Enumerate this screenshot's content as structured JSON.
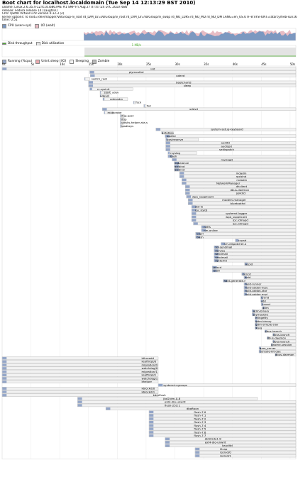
{
  "title": "Boot chart for localhost.localdomain (Tue Sep 14 12:13:29 BST 2010)",
  "info": [
    "uname: Linux 2.6.35.4-12.fc14.i686.PAE #1 SMP Fri Aug 27 07:47:24 UTC 2010 i686",
    "release: Fedora release 14 (Laughlin)",
    "CPU: QEMU Virtual CPU version 0.12.3 (2)",
    "kernel options: ro root=/dev/mapper/VolGroup-lv_root rd_LVM_LV=VolGroup/lv_root rd_LVM_LV=VolGroup/lv_swap rd_NO_LUKS rd_NO_MD rd_NO_DM LANG=en_US.UTF-8 SYSFONT=latarcyrheb-sun16 KEYTABLE=us rhgb quiet initcall_debug",
    "time: 0:51"
  ],
  "legends": {
    "cpu_user": "CPU (user+sys)",
    "io_wait": "I/O (wait)",
    "disk_throughput": "Disk throughput",
    "disk_util": "Disk utilization",
    "running": "Running (%cpu)",
    "unint_sleep": "Unint.sleep (I/O)",
    "sleeping": "Sleeping",
    "zombie": "Zombie"
  },
  "disk_peak": "1 MB/s",
  "colors": {
    "cpu": "#7c98c0",
    "io": "#e8bcc4",
    "throughput": "#4caf2e",
    "util": "#e3e3e3",
    "running": "#94a6c8",
    "unint": "#e9aaae",
    "sleeping": "#f2f2f2",
    "zombie": "#b7b7b7",
    "bar_border": "#a9a9a9"
  },
  "chart_data": {
    "type": "gantt",
    "time_unit": "s",
    "time_ticks": [
      "0s",
      "5s",
      "10s",
      "15s",
      "20s",
      "25s",
      "30s",
      "35s",
      "40s",
      "45s",
      "50s"
    ],
    "processes": [
      {
        "name": "init",
        "start": 0,
        "end": 51,
        "label_at": 25.8
      },
      {
        "name": "plymouthd",
        "start": 15.2,
        "end": 51,
        "label_at": 22.0
      },
      {
        "name": "udevd",
        "start": 15.3,
        "end": 51,
        "label_at": 30.2
      },
      {
        "name": "switch_root",
        "start": 14.3,
        "end": 15.2,
        "label_at": 15.5
      },
      {
        "name": "bootchartd",
        "start": 15.0,
        "end": 51,
        "label_at": 30.2
      },
      {
        "name": "sleep",
        "start": 15.0,
        "end": 51,
        "label_at": 31.5
      },
      {
        "name": "rc.sysinit",
        "start": 15.2,
        "end": 22.7,
        "label_at": 16.5
      },
      {
        "name": "start_udev",
        "start": 17.0,
        "end": 18.8,
        "label_at": 17.7
      },
      {
        "name": "udevd",
        "start": 17.0,
        "end": 18.6,
        "label_at": 17.0
      },
      {
        "name": "udevadm",
        "start": 17.5,
        "end": 21.8,
        "label_at": 18.7
      },
      {
        "name": "fsck",
        "start": 22.8,
        "end": 23.2,
        "label_at": 23.2
      },
      {
        "name": "fsd",
        "start": 24.6,
        "end": 25.0,
        "label_at": 25.1
      },
      {
        "name": "udevd",
        "start": 17.4,
        "end": 51,
        "label_at": 32.5
      },
      {
        "name": "modprobe",
        "start": 17.7,
        "end": 19.2,
        "label_at": 18.3
      },
      {
        "name": "ifup-post",
        "start": 20.5,
        "end": 21.2,
        "label_at": 20.7
      },
      {
        "name": "ifup",
        "start": 20.5,
        "end": 21.2,
        "label_at": 20.7
      },
      {
        "name": "udisks-helper-ata-s",
        "start": 20.5,
        "end": 21.1,
        "label_at": 20.7
      },
      {
        "name": "loadkeys",
        "start": 20.5,
        "end": 21.0,
        "label_at": 20.7
      },
      {
        "name": "system-setup-keyboard",
        "start": 26.7,
        "end": 51,
        "label_at": 36.2
      },
      {
        "name": "getablea",
        "start": 27.7,
        "end": 29.7,
        "label_at": 27.7
      },
      {
        "name": "auditd",
        "start": 28.3,
        "end": 51,
        "label_at": 28.6
      },
      {
        "name": "postreserve",
        "start": 28.4,
        "end": 34.1,
        "label_at": 28.6
      },
      {
        "name": "auditd",
        "start": 28.4,
        "end": 51,
        "label_at": 38.0
      },
      {
        "name": "audispd",
        "start": 28.4,
        "end": 51,
        "label_at": 38.0
      },
      {
        "name": "sedispatch",
        "start": 28.4,
        "end": 51,
        "label_at": 37.7
      },
      {
        "name": "rsyslog",
        "start": 28.8,
        "end": 33.8,
        "label_at": 29.2
      },
      {
        "name": "bash",
        "start": 28.8,
        "end": 51,
        "label_at": 29.2
      },
      {
        "name": "rsyslogd",
        "start": 29.5,
        "end": 51,
        "label_at": 38.0
      },
      {
        "name": "irqbalance",
        "start": 29.9,
        "end": 51,
        "label_at": 29.9
      },
      {
        "name": "rpcbind",
        "start": 29.9,
        "end": 51,
        "label_at": 29.9
      },
      {
        "name": "rpcbind",
        "start": 29.9,
        "end": 51,
        "label_at": 29.9
      },
      {
        "name": "mdadm",
        "start": 30.8,
        "end": 51,
        "label_at": 40.6
      },
      {
        "name": "rpcbind",
        "start": 30.8,
        "end": 51,
        "label_at": 40.6
      },
      {
        "name": "mdadm",
        "start": 31.2,
        "end": 51,
        "label_at": 40.7
      },
      {
        "name": "NetworkManager",
        "start": 31.2,
        "end": 51,
        "label_at": 37.2
      },
      {
        "name": "dhclient",
        "start": 31.8,
        "end": 51,
        "label_at": 40.6
      },
      {
        "name": "dbus-daemon",
        "start": 31.8,
        "end": 51,
        "label_at": 39.6
      },
      {
        "name": "polkitd",
        "start": 31.8,
        "end": 51,
        "label_at": 40.6
      },
      {
        "name": "wpa_supplicant",
        "start": 32.0,
        "end": 51,
        "label_at": 33.0
      },
      {
        "name": "modem-manager",
        "start": 32.3,
        "end": 51,
        "label_at": 38.2
      },
      {
        "name": "bluetoothd",
        "start": 32.3,
        "end": 51,
        "label_at": 39.6
      },
      {
        "name": "atd-lo",
        "start": 32.9,
        "end": 51,
        "label_at": 33.5
      },
      {
        "name": "rpc.statd",
        "start": 32.9,
        "end": 51,
        "label_at": 33.5
      },
      {
        "name": "systemd-logger",
        "start": 32.9,
        "end": 51,
        "label_at": 38.8
      },
      {
        "name": "wpa_supplicant",
        "start": 32.9,
        "end": 51,
        "label_at": 38.8
      },
      {
        "name": "rpc.idmapd",
        "start": 32.9,
        "end": 51,
        "label_at": 40.0
      },
      {
        "name": "rpc.idmapd",
        "start": 33.2,
        "end": 51,
        "label_at": 40.0
      },
      {
        "name": "netfs",
        "start": 34.6,
        "end": 51,
        "label_at": 35.0
      },
      {
        "name": "nm-online",
        "start": 34.6,
        "end": 51,
        "label_at": 35.0
      },
      {
        "name": "capri",
        "start": 33.6,
        "end": 51,
        "label_at": 33.8
      },
      {
        "name": "bash",
        "start": 33.6,
        "end": 51,
        "label_at": 33.8
      },
      {
        "name": "cupsd",
        "start": 40.5,
        "end": 51,
        "label_at": 41.0
      },
      {
        "name": "nm-dispatcher.a",
        "start": 38.0,
        "end": 51,
        "label_at": 38.5
      },
      {
        "name": "S3-sendmail",
        "start": 36.8,
        "end": 51,
        "label_at": 37.0
      },
      {
        "name": "service",
        "start": 36.8,
        "end": 51,
        "label_at": 37.0
      },
      {
        "name": "sendmail",
        "start": 36.8,
        "end": 51,
        "label_at": 37.0
      },
      {
        "name": "sendmail",
        "start": 36.8,
        "end": 51,
        "label_at": 37.0
      },
      {
        "name": "systemd",
        "start": 36.8,
        "end": 51,
        "label_at": 37.0
      },
      {
        "name": "acpid",
        "start": 42.1,
        "end": 51,
        "label_at": 42.2
      },
      {
        "name": "pcscd",
        "start": 36.5,
        "end": 51,
        "label_at": 36.7
      },
      {
        "name": "bash",
        "start": 36.5,
        "end": 51,
        "label_at": 36.7
      },
      {
        "name": "pcscd",
        "start": 41.6,
        "end": 51,
        "label_at": 41.8
      },
      {
        "name": "hald",
        "start": 42.0,
        "end": 51,
        "label_at": 42.1
      },
      {
        "name": "hald-generate-f",
        "start": 38.4,
        "end": 51,
        "label_at": 38.5
      },
      {
        "name": "hald-runner",
        "start": 42.0,
        "end": 51,
        "label_at": 42.2
      },
      {
        "name": "hald-addon-inpu",
        "start": 42.0,
        "end": 51,
        "label_at": 42.2
      },
      {
        "name": "hald-addon-stor",
        "start": 42.0,
        "end": 51,
        "label_at": 42.2
      },
      {
        "name": "hald-addon-acpi",
        "start": 42.0,
        "end": 51,
        "label_at": 42.2
      },
      {
        "name": "crond",
        "start": 44.9,
        "end": 51,
        "label_at": 45.0
      },
      {
        "name": "atd",
        "start": 44.9,
        "end": 51,
        "label_at": 45.0
      },
      {
        "name": "crond",
        "start": 45.0,
        "end": 51,
        "label_at": 45.2
      },
      {
        "name": "gdm",
        "start": 45.2,
        "end": 51,
        "label_at": 45.2
      },
      {
        "name": "gdm-binary",
        "start": 43.4,
        "end": 51,
        "label_at": 43.6
      },
      {
        "name": "plymouthd",
        "start": 43.4,
        "end": 51,
        "label_at": 43.6
      },
      {
        "name": "mingetty",
        "start": 43.9,
        "end": 51,
        "label_at": 44.0
      },
      {
        "name": "gdm-binary",
        "start": 43.9,
        "end": 51,
        "label_at": 44.0
      },
      {
        "name": "gdm-simple-slav",
        "start": 43.9,
        "end": 51,
        "label_at": 44.0
      },
      {
        "name": "Xorg",
        "start": 43.9,
        "end": 51,
        "label_at": 44.0
      },
      {
        "name": "dbus-launch",
        "start": 45.6,
        "end": 51,
        "label_at": 45.6
      },
      {
        "name": "dbus-launch",
        "start": 47.0,
        "end": 51,
        "label_at": 47.0
      },
      {
        "name": "dbus-daemon",
        "start": 46.0,
        "end": 51,
        "label_at": 46.0
      },
      {
        "name": "dbus-launch",
        "start": 47.0,
        "end": 51,
        "label_at": 47.0
      },
      {
        "name": "gnome-session",
        "start": 46.7,
        "end": 51,
        "label_at": 46.7
      },
      {
        "name": "gam_server",
        "start": 44.6,
        "end": 51,
        "label_at": 44.7
      },
      {
        "name": "console-kit-dae",
        "start": 44.6,
        "end": 51,
        "label_at": 44.7
      },
      {
        "name": "dbus-daemon",
        "start": 47.4,
        "end": 51,
        "label_at": 47.4
      },
      {
        "name": "kthreadd",
        "start": 0,
        "end": 27.1,
        "label_at": 24.2
      },
      {
        "name": "ksoftirqd/0",
        "start": 0,
        "end": 27.1,
        "label_at": 24.2
      },
      {
        "name": "migration/0",
        "start": 0,
        "end": 27.1,
        "label_at": 24.2
      },
      {
        "name": "watchdog/0",
        "start": 0,
        "end": 27.1,
        "label_at": 24.2
      },
      {
        "name": "migration/1",
        "start": 0,
        "end": 27.1,
        "label_at": 24.2
      },
      {
        "name": "ksoftirqd/1",
        "start": 0,
        "end": 27.1,
        "label_at": 24.2
      },
      {
        "name": "watchdog/1",
        "start": 0,
        "end": 27.1,
        "label_at": 24.2
      },
      {
        "name": "khelper",
        "start": 0,
        "end": 27.1,
        "label_at": 24.2
      },
      {
        "name": "systemd-cgroups",
        "start": 27.1,
        "end": 51,
        "label_at": 28.0
      },
      {
        "name": "kblockd/0",
        "start": 0,
        "end": 27.1,
        "label_at": 24.2
      },
      {
        "name": "kblockd/1",
        "start": 0,
        "end": 27.1,
        "label_at": 24.2
      },
      {
        "name": "kdmflush",
        "start": 0,
        "end": 27.1,
        "label_at": 26.2
      },
      {
        "name": "jbd2/dm-0-8",
        "start": 13.1,
        "end": 44.3,
        "label_at": 28.0
      },
      {
        "name": "ext4-dio-unwrit",
        "start": 13.1,
        "end": 51,
        "label_at": 28.2
      },
      {
        "name": "flush-253:1",
        "start": 13.1,
        "end": 51,
        "label_at": 28.2
      },
      {
        "name": "dbaftoon",
        "start": 18.0,
        "end": 51,
        "label_at": 32.0
      },
      {
        "name": "flush-7:0",
        "start": 25.5,
        "end": 51,
        "label_at": 33.3
      },
      {
        "name": "flush-7:1",
        "start": 25.5,
        "end": 51,
        "label_at": 33.3
      },
      {
        "name": "flush-7:2",
        "start": 25.5,
        "end": 51,
        "label_at": 33.3
      },
      {
        "name": "flush-7:3",
        "start": 25.5,
        "end": 51,
        "label_at": 33.3
      },
      {
        "name": "flush-7:4",
        "start": 25.5,
        "end": 51,
        "label_at": 33.3
      },
      {
        "name": "flush-7:5",
        "start": 25.5,
        "end": 51,
        "label_at": 33.3
      },
      {
        "name": "flush-7:6",
        "start": 25.5,
        "end": 51,
        "label_at": 33.3
      },
      {
        "name": "flush-7:7",
        "start": 25.5,
        "end": 51,
        "label_at": 33.3
      },
      {
        "name": "jbd2/sda1-8",
        "start": 28.3,
        "end": 51,
        "label_at": 35.2
      },
      {
        "name": "ext4-dio-unwrit",
        "start": 28.3,
        "end": 51,
        "label_at": 35.2
      },
      {
        "name": "kauditd",
        "start": 28.3,
        "end": 51,
        "label_at": 38.2
      },
      {
        "name": "l2cap",
        "start": 33.5,
        "end": 51,
        "label_at": 37.8
      },
      {
        "name": "rpciod/0",
        "start": 33.5,
        "end": 51,
        "label_at": 37.8
      },
      {
        "name": "rpciod/1",
        "start": 33.5,
        "end": 51,
        "label_at": 37.8
      }
    ]
  }
}
